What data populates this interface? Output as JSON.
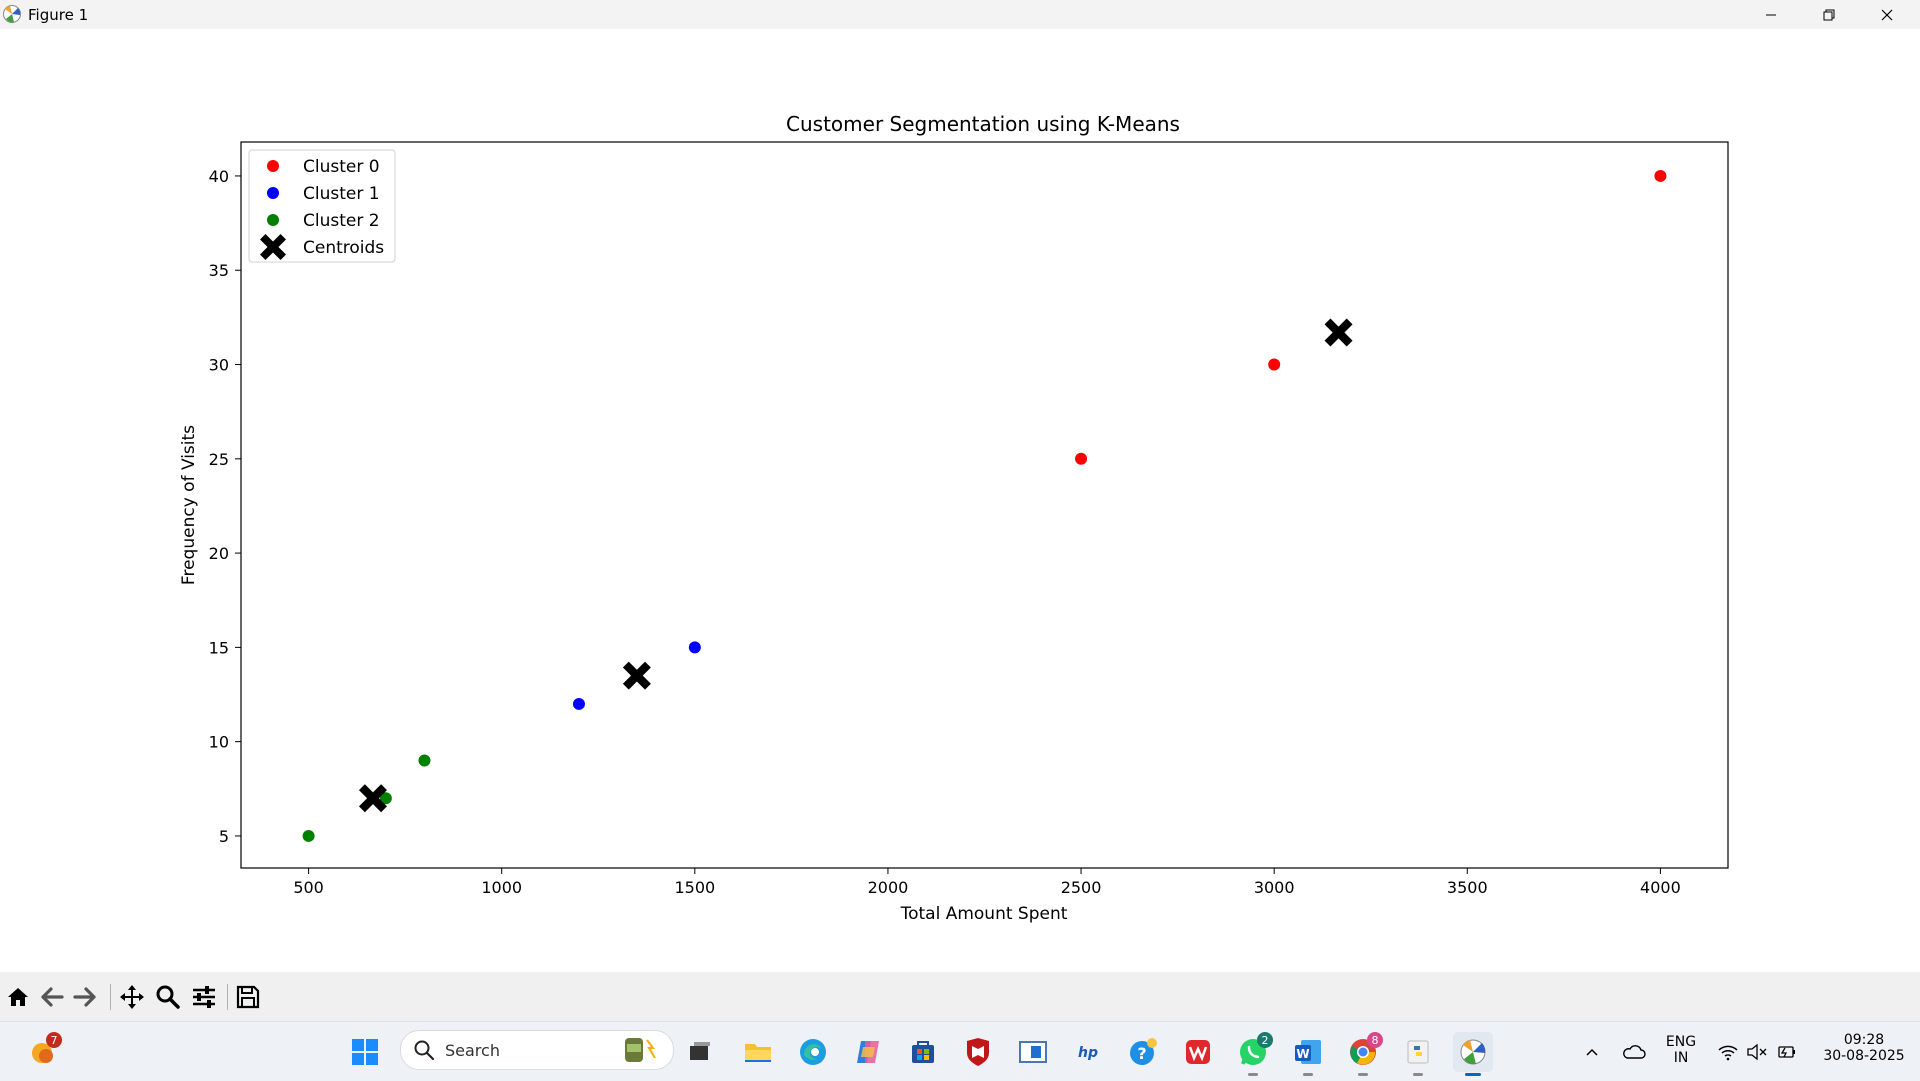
{
  "window": {
    "title": "Figure 1"
  },
  "chart_data": {
    "type": "scatter",
    "title": "Customer Segmentation using K-Means",
    "xlabel": "Total Amount Spent",
    "ylabel": "Frequency of Visits",
    "xlim": [
      325,
      4175
    ],
    "ylim": [
      3.3,
      41.8
    ],
    "xticks": [
      500,
      1000,
      1500,
      2000,
      2500,
      3000,
      3500,
      4000
    ],
    "yticks": [
      5,
      10,
      15,
      20,
      25,
      30,
      35,
      40
    ],
    "legend_position": "upper-left",
    "series": [
      {
        "name": "Cluster 0",
        "color": "#ff0000",
        "marker": "circle",
        "points": [
          [
            2500,
            25
          ],
          [
            3000,
            30
          ],
          [
            4000,
            40
          ]
        ]
      },
      {
        "name": "Cluster 1",
        "color": "#0000ff",
        "marker": "circle",
        "points": [
          [
            1200,
            12
          ],
          [
            1500,
            15
          ]
        ]
      },
      {
        "name": "Cluster 2",
        "color": "#008000",
        "marker": "circle",
        "points": [
          [
            500,
            5
          ],
          [
            700,
            7
          ],
          [
            800,
            9
          ]
        ]
      },
      {
        "name": "Centroids",
        "color": "#000000",
        "marker": "x",
        "points": [
          [
            666.7,
            7
          ],
          [
            1350,
            13.5
          ],
          [
            3166.7,
            31.7
          ]
        ]
      }
    ]
  },
  "toolbar": {
    "buttons": [
      "home-icon",
      "back-icon",
      "forward-icon",
      "pan-icon",
      "zoom-icon",
      "configure-subplots-icon",
      "save-icon"
    ]
  },
  "taskbar": {
    "search_label": "Search",
    "weather_badge": "7",
    "whatsapp_badge": "2",
    "chrome_badge": "8",
    "lang_line1": "ENG",
    "lang_line2": "IN",
    "time": "09:28",
    "date": "30-08-2025",
    "accent": "#0067c0"
  }
}
